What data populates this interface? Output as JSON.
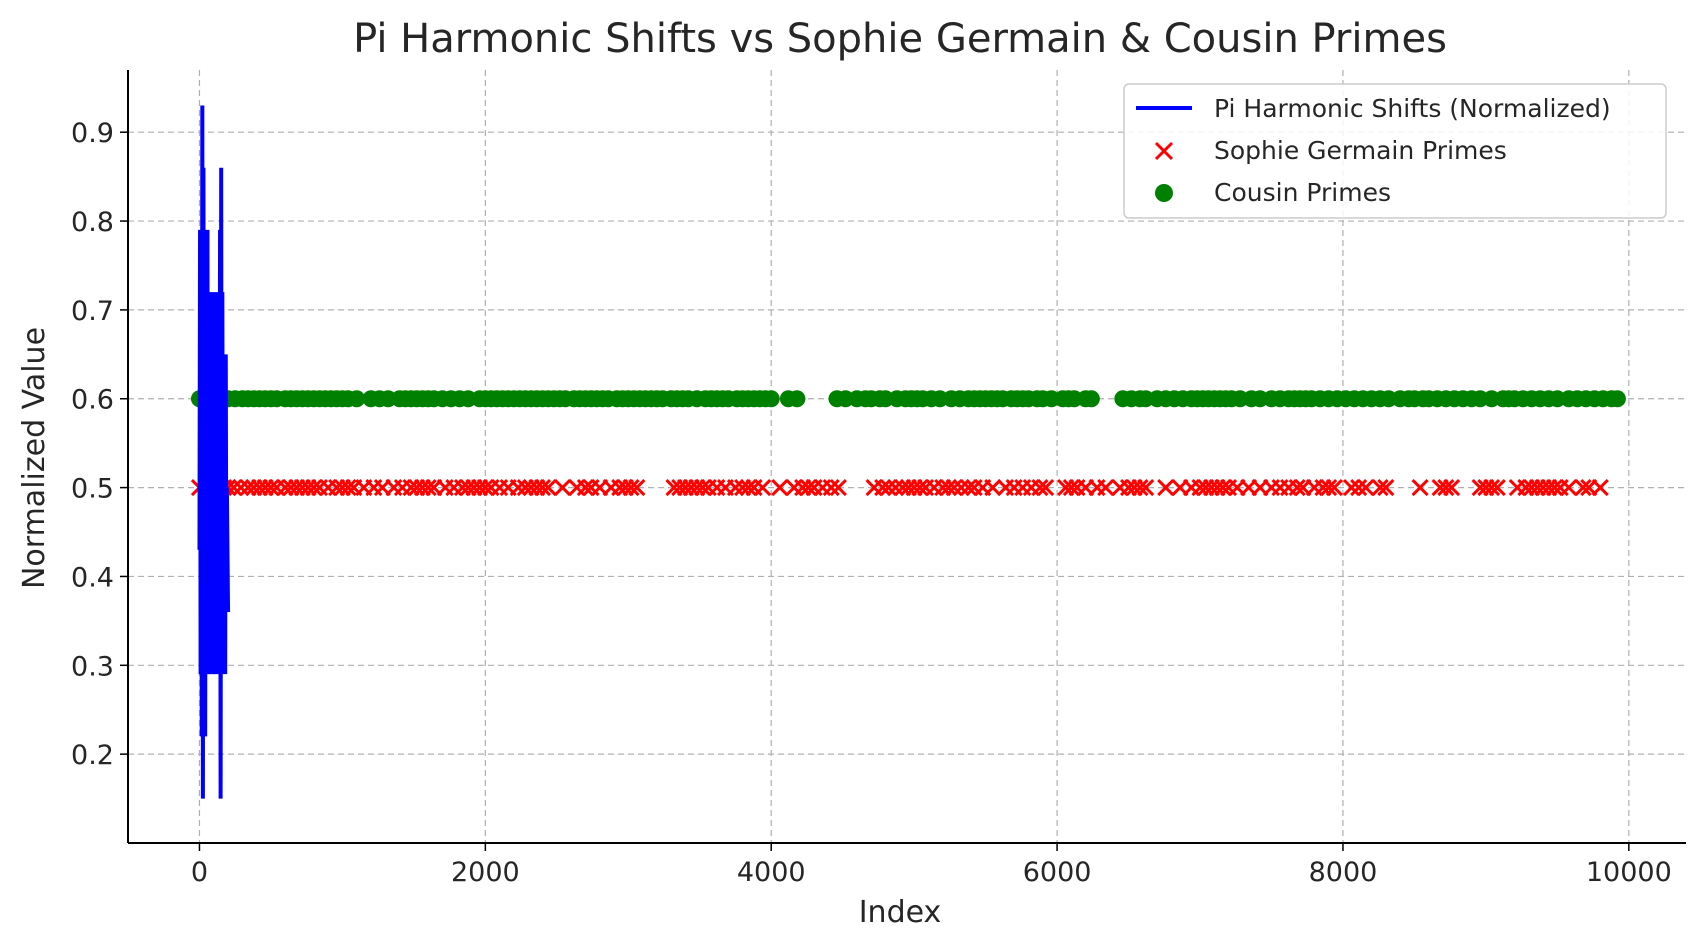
{
  "chart_data": {
    "type": "scatter",
    "title": "Pi Harmonic Shifts vs Sophie Germain & Cousin Primes",
    "xlabel": "Index",
    "ylabel": "Normalized Value",
    "xlim": [
      -500,
      10400
    ],
    "ylim": [
      0.1,
      0.97
    ],
    "xticks": [
      0,
      2000,
      4000,
      6000,
      8000,
      10000
    ],
    "yticks": [
      0.2,
      0.3,
      0.4,
      0.5,
      0.6,
      0.7,
      0.8,
      0.9
    ],
    "grid": true,
    "legend_position": "top-right",
    "colors": {
      "pi": "#0000ff",
      "sophie": "#ff0000",
      "cousin": "#008000"
    },
    "series": [
      {
        "name": "Pi Harmonic Shifts (Normalized)",
        "kind": "line",
        "x": [
          0,
          4,
          8,
          12,
          16,
          20,
          24,
          28,
          32,
          36,
          40,
          44,
          48,
          52,
          56,
          60,
          64,
          68,
          72,
          76,
          80,
          84,
          88,
          92,
          96,
          100,
          104,
          108,
          112,
          116,
          120,
          124,
          128,
          132,
          136,
          140,
          144,
          148,
          152,
          156,
          160,
          164,
          168,
          172,
          176,
          180,
          184,
          188,
          192,
          196,
          200
        ],
        "y": [
          0.43,
          0.79,
          0.29,
          0.72,
          0.22,
          0.93,
          0.15,
          0.86,
          0.36,
          0.79,
          0.22,
          0.65,
          0.5,
          0.36,
          0.79,
          0.29,
          0.72,
          0.5,
          0.65,
          0.36,
          0.29,
          0.72,
          0.5,
          0.36,
          0.65,
          0.29,
          0.72,
          0.43,
          0.29,
          0.65,
          0.36,
          0.43,
          0.72,
          0.29,
          0.5,
          0.36,
          0.79,
          0.15,
          0.86,
          0.29,
          0.72,
          0.43,
          0.65,
          0.36,
          0.5,
          0.29,
          0.65,
          0.36,
          0.5,
          0.43,
          0.36
        ]
      },
      {
        "name": "Sophie Germain Primes",
        "kind": "scatter",
        "marker": "x",
        "y_value": 0.5,
        "x": [
          0,
          60,
          120,
          170,
          200,
          240,
          290,
          340,
          380,
          420,
          460,
          500,
          540,
          600,
          640,
          680,
          720,
          760,
          800,
          840,
          900,
          960,
          1000,
          1040,
          1080,
          1150,
          1220,
          1280,
          1360,
          1420,
          1480,
          1520,
          1560,
          1600,
          1640,
          1720,
          1780,
          1840,
          1880,
          1920,
          1960,
          2000,
          2040,
          2100,
          2160,
          2230,
          2280,
          2320,
          2360,
          2400,
          2440,
          2540,
          2640,
          2700,
          2740,
          2800,
          2880,
          2940,
          2980,
          3020,
          3060,
          3320,
          3360,
          3400,
          3440,
          3480,
          3520,
          3560,
          3620,
          3680,
          3750,
          3800,
          3840,
          3880,
          3940,
          4060,
          4160,
          4220,
          4260,
          4300,
          4360,
          4420,
          4470,
          4720,
          4780,
          4820,
          4870,
          4920,
          4960,
          5000,
          5040,
          5080,
          5140,
          5200,
          5240,
          5280,
          5330,
          5380,
          5420,
          5480,
          5550,
          5640,
          5700,
          5760,
          5820,
          5880,
          5920,
          6060,
          6100,
          6140,
          6200,
          6280,
          6340,
          6440,
          6500,
          6540,
          6580,
          6620,
          6760,
          6860,
          6940,
          7000,
          7040,
          7080,
          7120,
          7160,
          7200,
          7260,
          7340,
          7420,
          7500,
          7560,
          7620,
          7680,
          7720,
          7800,
          7860,
          7900,
          7940,
          8060,
          8110,
          8160,
          8260,
          8300,
          8540,
          8680,
          8720,
          8760,
          8960,
          9000,
          9040,
          9080,
          9220,
          9280,
          9320,
          9360,
          9400,
          9440,
          9480,
          9520,
          9580,
          9680,
          9720,
          9800
        ]
      },
      {
        "name": "Cousin Primes",
        "kind": "scatter",
        "marker": "o",
        "y_value": 0.6,
        "x": [
          0,
          40,
          90,
          140,
          200,
          250,
          300,
          340,
          380,
          420,
          460,
          500,
          540,
          600,
          640,
          680,
          720,
          760,
          800,
          840,
          880,
          920,
          960,
          1000,
          1040,
          1100,
          1200,
          1260,
          1320,
          1400,
          1440,
          1480,
          1520,
          1560,
          1600,
          1640,
          1700,
          1760,
          1820,
          1880,
          1960,
          2000,
          2040,
          2080,
          2120,
          2160,
          2200,
          2240,
          2280,
          2320,
          2360,
          2400,
          2440,
          2480,
          2520,
          2560,
          2620,
          2660,
          2700,
          2740,
          2780,
          2820,
          2860,
          2920,
          2960,
          3000,
          3040,
          3080,
          3120,
          3160,
          3200,
          3240,
          3300,
          3340,
          3380,
          3420,
          3480,
          3540,
          3580,
          3620,
          3660,
          3700,
          3760,
          3800,
          3840,
          3880,
          3920,
          3960,
          4000,
          4120,
          4180,
          4460,
          4520,
          4600,
          4660,
          4700,
          4760,
          4800,
          4880,
          4940,
          4980,
          5020,
          5060,
          5120,
          5180,
          5260,
          5320,
          5380,
          5420,
          5460,
          5500,
          5540,
          5580,
          5620,
          5680,
          5720,
          5760,
          5800,
          5860,
          5900,
          5960,
          6040,
          6080,
          6120,
          6200,
          6240,
          6460,
          6520,
          6580,
          6620,
          6700,
          6760,
          6820,
          6880,
          6940,
          6980,
          7020,
          7060,
          7100,
          7140,
          7180,
          7220,
          7280,
          7360,
          7420,
          7500,
          7560,
          7620,
          7660,
          7700,
          7740,
          7780,
          7840,
          7900,
          7960,
          8020,
          8080,
          8140,
          8200,
          8260,
          8320,
          8400,
          8460,
          8500,
          8560,
          8600,
          8660,
          8720,
          8780,
          8840,
          8900,
          8960,
          9040,
          9120,
          9160,
          9200,
          9260,
          9320,
          9380,
          9440,
          9500,
          9580,
          9640,
          9700,
          9760,
          9820,
          9880,
          9920
        ]
      }
    ]
  }
}
